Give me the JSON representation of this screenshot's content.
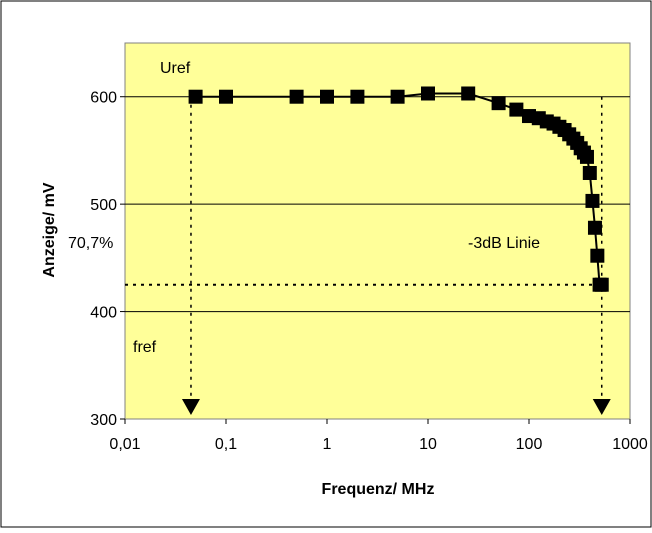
{
  "chart_data": {
    "type": "line",
    "xlabel": "Frequenz/ MHz",
    "ylabel": "Anzeige/ mV",
    "x_scale": "log",
    "xlim": [
      0.01,
      1000
    ],
    "ylim": [
      300,
      650
    ],
    "x_tick_labels": [
      "0,01",
      "0,1",
      "1",
      "10",
      "100",
      "1000"
    ],
    "y_tick_labels": [
      "300",
      "400",
      "500",
      "600"
    ],
    "gridlines_y": [
      400,
      500,
      600
    ],
    "plot_background": "#ffff99",
    "series": [
      {
        "x": [
          0.05,
          0.1,
          0.5,
          1,
          2,
          5,
          10,
          25,
          50,
          75,
          100,
          125,
          150,
          175,
          200,
          225,
          250,
          275,
          300,
          325,
          350,
          375,
          400,
          425,
          450,
          475,
          500,
          525
        ],
        "y": [
          600,
          600,
          600,
          600,
          600,
          600,
          603,
          603,
          594,
          588,
          582,
          580,
          577,
          575,
          572,
          569,
          565,
          561,
          557,
          552,
          548,
          544,
          529,
          503,
          478,
          452,
          425,
          425
        ]
      }
    ],
    "reference_lines": [
      {
        "kind": "horizontal-dotted",
        "y": 425
      },
      {
        "kind": "vertical-dotted-arrow",
        "x": 0.045
      },
      {
        "kind": "vertical-dotted-arrow",
        "x": 525
      }
    ],
    "annotations": {
      "uref": "Uref",
      "percent": "70,7%",
      "db_line": "-3dB Linie",
      "fref": "fref"
    }
  }
}
